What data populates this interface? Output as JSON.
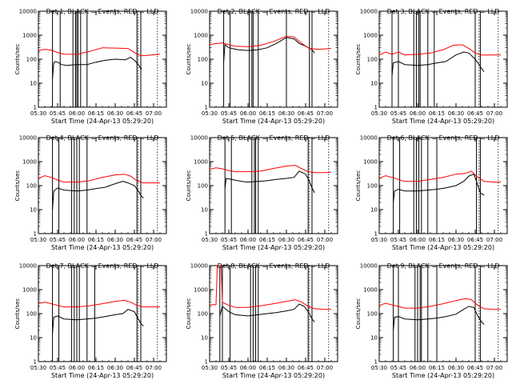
{
  "colors": {
    "events": "#000000",
    "lld": "#ff0000",
    "axes": "#000000",
    "background": "#ffffff"
  },
  "xlabel": "Start Time (24-Apr-13 05:29:20)",
  "ylabel": "Counts/sec",
  "xticks": [
    "05:30",
    "05:45",
    "06:00",
    "06:15",
    "06:30",
    "06:45",
    "07:00"
  ],
  "yticks": [
    "1",
    "10",
    "100",
    "1000",
    "10000"
  ],
  "chart_data": [
    {
      "type": "line",
      "title": "Det 1, BLACK = Events, RED = LLD",
      "xlabel": "Start Time (24-Apr-13 05:29:20)",
      "ylabel": "Counts/sec",
      "ylim": [
        1,
        10000
      ],
      "yscale": "log",
      "xlim": [
        "05:30",
        "07:10"
      ],
      "vertical_lines": [
        "05:41",
        "05:47",
        "05:57",
        "05:59",
        "06:00",
        "06:01",
        "06:03",
        "06:08",
        "06:47",
        "06:50"
      ],
      "series": [
        {
          "name": "Events",
          "color": "#000000",
          "x": [
            "05:41",
            "05:42",
            "05:43",
            "05:45",
            "05:48",
            "05:52",
            "06:00",
            "06:08",
            "06:15",
            "06:22",
            "06:30",
            "06:38",
            "06:42",
            "06:45",
            "06:47",
            "06:49",
            "06:50",
            "06:51"
          ],
          "y": [
            15,
            70,
            80,
            75,
            60,
            55,
            60,
            60,
            75,
            90,
            100,
            95,
            120,
            90,
            70,
            50,
            40,
            40
          ]
        },
        {
          "name": "LLD",
          "color": "#ff0000",
          "x": [
            "05:30",
            "05:35",
            "05:40",
            "05:45",
            "05:50",
            "06:00",
            "06:10",
            "06:20",
            "06:30",
            "06:40",
            "06:45",
            "06:48",
            "06:52",
            "06:58",
            "07:05"
          ],
          "y": [
            230,
            260,
            240,
            190,
            160,
            160,
            210,
            300,
            290,
            280,
            190,
            150,
            140,
            150,
            160
          ]
        }
      ]
    },
    {
      "type": "line",
      "title": "Det 2, BLACK = Events, RED = LLD",
      "xlabel": "Start Time (24-Apr-13 05:29:20)",
      "ylabel": "Counts/sec",
      "ylim": [
        1,
        10000
      ],
      "yscale": "log",
      "xlim": [
        "05:30",
        "07:10"
      ],
      "vertical_lines": [
        "05:41",
        "05:46",
        "06:01",
        "06:03",
        "06:04",
        "06:08",
        "06:30",
        "06:48",
        "06:50"
      ],
      "series": [
        {
          "name": "Events",
          "color": "#000000",
          "x": [
            "05:41",
            "05:42",
            "05:45",
            "05:52",
            "06:00",
            "06:08",
            "06:15",
            "06:22",
            "06:30",
            "06:36",
            "06:40",
            "06:45",
            "06:50",
            "06:52"
          ],
          "y": [
            80,
            400,
            300,
            250,
            230,
            250,
            300,
            450,
            800,
            700,
            450,
            350,
            250,
            180
          ]
        },
        {
          "name": "LLD",
          "color": "#ff0000",
          "x": [
            "05:30",
            "05:35",
            "05:40",
            "05:45",
            "05:50",
            "06:00",
            "06:10",
            "06:20",
            "06:30",
            "06:36",
            "06:42",
            "06:48",
            "06:55",
            "07:05"
          ],
          "y": [
            400,
            450,
            480,
            400,
            350,
            330,
            380,
            550,
            900,
            850,
            450,
            280,
            260,
            280
          ]
        }
      ]
    },
    {
      "type": "line",
      "title": "Det 3, BLACK = Events, RED = LLD",
      "xlabel": "Start Time (24-Apr-13 05:29:20)",
      "ylabel": "Counts/sec",
      "ylim": [
        1,
        10000
      ],
      "yscale": "log",
      "xlim": [
        "05:30",
        "07:10"
      ],
      "vertical_lines": [
        "05:40",
        "05:45",
        "05:57",
        "05:59",
        "06:01",
        "06:02",
        "06:08",
        "06:13",
        "06:45",
        "06:49"
      ],
      "series": [
        {
          "name": "Events",
          "color": "#000000",
          "x": [
            "05:40",
            "05:41",
            "05:45",
            "05:50",
            "06:00",
            "06:08",
            "06:15",
            "06:22",
            "06:30",
            "06:36",
            "06:40",
            "06:45",
            "06:48",
            "06:50",
            "06:52"
          ],
          "y": [
            20,
            70,
            80,
            60,
            55,
            60,
            70,
            80,
            150,
            200,
            180,
            100,
            60,
            40,
            30
          ]
        },
        {
          "name": "LLD",
          "color": "#ff0000",
          "x": [
            "05:30",
            "05:35",
            "05:40",
            "05:45",
            "05:50",
            "06:00",
            "06:10",
            "06:20",
            "06:28",
            "06:35",
            "06:40",
            "06:45",
            "06:50",
            "07:00",
            "07:05"
          ],
          "y": [
            150,
            200,
            160,
            200,
            150,
            160,
            180,
            250,
            380,
            400,
            280,
            180,
            150,
            150,
            150
          ]
        }
      ]
    },
    {
      "type": "line",
      "title": "Det 4, BLACK = Events, RED = LLD",
      "xlabel": "Start Time (24-Apr-13 05:29:20)",
      "ylabel": "Counts/sec",
      "ylim": [
        1,
        10000
      ],
      "yscale": "log",
      "xlim": [
        "05:30",
        "07:10"
      ],
      "vertical_lines": [
        "05:41",
        "05:46",
        "05:56",
        "05:58",
        "06:00",
        "06:02",
        "06:08",
        "06:47",
        "06:50"
      ],
      "series": [
        {
          "name": "Events",
          "color": "#000000",
          "x": [
            "05:41",
            "05:42",
            "05:45",
            "05:50",
            "06:00",
            "06:08",
            "06:15",
            "06:22",
            "06:30",
            "06:36",
            "06:40",
            "06:45",
            "06:48",
            "06:50",
            "06:52"
          ],
          "y": [
            10,
            60,
            80,
            65,
            60,
            65,
            75,
            85,
            120,
            150,
            130,
            100,
            60,
            40,
            30
          ]
        },
        {
          "name": "LLD",
          "color": "#ff0000",
          "x": [
            "05:30",
            "05:35",
            "05:40",
            "05:45",
            "05:50",
            "06:00",
            "06:10",
            "06:20",
            "06:30",
            "06:37",
            "06:42",
            "06:47",
            "06:52",
            "07:00",
            "07:05"
          ],
          "y": [
            200,
            260,
            220,
            170,
            140,
            140,
            160,
            220,
            280,
            300,
            250,
            160,
            130,
            130,
            130
          ]
        }
      ]
    },
    {
      "type": "line",
      "title": "Det 5, BLACK = Events, RED = LLD",
      "xlabel": "Start Time (24-Apr-13 05:29:20)",
      "ylabel": "Counts/sec",
      "ylim": [
        1,
        10000
      ],
      "yscale": "log",
      "xlim": [
        "05:30",
        "07:10"
      ],
      "vertical_lines": [
        "05:42",
        "05:47",
        "06:03",
        "06:05",
        "06:06",
        "06:08",
        "06:47",
        "06:50"
      ],
      "series": [
        {
          "name": "Events",
          "color": "#000000",
          "x": [
            "05:42",
            "05:43",
            "05:47",
            "05:55",
            "06:00",
            "06:08",
            "06:15",
            "06:22",
            "06:30",
            "06:36",
            "06:40",
            "06:45",
            "06:48",
            "06:50",
            "06:52"
          ],
          "y": [
            80,
            200,
            180,
            150,
            140,
            150,
            160,
            180,
            200,
            220,
            400,
            300,
            150,
            80,
            50
          ]
        },
        {
          "name": "LLD",
          "color": "#ff0000",
          "x": [
            "05:30",
            "05:35",
            "05:40",
            "05:45",
            "05:50",
            "06:00",
            "06:10",
            "06:20",
            "06:30",
            "06:37",
            "06:42",
            "06:47",
            "06:52",
            "07:00",
            "07:05"
          ],
          "y": [
            480,
            550,
            500,
            420,
            380,
            380,
            400,
            520,
            650,
            700,
            500,
            380,
            350,
            350,
            360
          ]
        }
      ]
    },
    {
      "type": "line",
      "title": "Det 6, BLACK = Events, RED = LLD",
      "xlabel": "Start Time (24-Apr-13 05:29:20)",
      "ylabel": "Counts/sec",
      "ylim": [
        1,
        10000
      ],
      "yscale": "log",
      "xlim": [
        "05:30",
        "07:10"
      ],
      "vertical_lines": [
        "05:41",
        "05:46",
        "05:57",
        "05:59",
        "06:01",
        "06:03",
        "06:08",
        "06:15",
        "06:46",
        "06:49"
      ],
      "series": [
        {
          "name": "Events",
          "color": "#000000",
          "x": [
            "05:41",
            "05:42",
            "05:45",
            "05:50",
            "06:00",
            "06:08",
            "06:15",
            "06:22",
            "06:30",
            "06:36",
            "06:40",
            "06:44",
            "06:46",
            "06:49",
            "06:52"
          ],
          "y": [
            20,
            60,
            70,
            60,
            60,
            65,
            70,
            80,
            100,
            150,
            250,
            300,
            150,
            50,
            40
          ]
        },
        {
          "name": "LLD",
          "color": "#ff0000",
          "x": [
            "05:30",
            "05:35",
            "05:40",
            "05:45",
            "05:50",
            "06:00",
            "06:10",
            "06:20",
            "06:30",
            "06:37",
            "06:42",
            "06:46",
            "06:52",
            "07:00",
            "07:05"
          ],
          "y": [
            200,
            260,
            220,
            180,
            150,
            150,
            180,
            220,
            300,
            320,
            400,
            250,
            150,
            140,
            140
          ]
        }
      ]
    },
    {
      "type": "line",
      "title": "Det 7, BLACK = Events, RED = LLD",
      "xlabel": "Start Time (24-Apr-13 05:29:20)",
      "ylabel": "Counts/sec",
      "ylim": [
        1,
        10000
      ],
      "yscale": "log",
      "xlim": [
        "05:30",
        "07:10"
      ],
      "vertical_lines": [
        "05:41",
        "05:46",
        "05:56",
        "05:58",
        "06:00",
        "06:02",
        "06:08",
        "06:14",
        "06:47",
        "06:50"
      ],
      "series": [
        {
          "name": "Events",
          "color": "#000000",
          "x": [
            "05:41",
            "05:42",
            "05:45",
            "05:50",
            "06:00",
            "06:08",
            "06:15",
            "06:22",
            "06:30",
            "06:36",
            "06:40",
            "06:45",
            "06:48",
            "06:50",
            "06:52"
          ],
          "y": [
            15,
            70,
            80,
            60,
            55,
            60,
            65,
            75,
            90,
            100,
            150,
            120,
            60,
            40,
            30
          ]
        },
        {
          "name": "LLD",
          "color": "#ff0000",
          "x": [
            "05:30",
            "05:35",
            "05:40",
            "05:45",
            "05:50",
            "06:00",
            "06:10",
            "06:20",
            "06:30",
            "06:37",
            "06:42",
            "06:47",
            "06:52",
            "07:00",
            "07:05"
          ],
          "y": [
            260,
            300,
            260,
            220,
            190,
            190,
            210,
            260,
            320,
            360,
            300,
            220,
            190,
            190,
            190
          ]
        }
      ]
    },
    {
      "type": "line",
      "title": "Det 8, BLACK = Events, RED = LLD",
      "xlabel": "Start Time (24-Apr-13 05:29:20)",
      "ylabel": "Counts/sec",
      "ylim": [
        1,
        10000
      ],
      "yscale": "log",
      "xlim": [
        "05:30",
        "07:10"
      ],
      "vertical_lines": [
        "05:38",
        "05:40",
        "05:46",
        "06:02",
        "06:04",
        "06:06",
        "06:08",
        "06:47",
        "06:50"
      ],
      "series": [
        {
          "name": "Events",
          "color": "#000000",
          "x": [
            "05:38",
            "05:40",
            "05:45",
            "05:50",
            "06:00",
            "06:08",
            "06:15",
            "06:22",
            "06:30",
            "06:36",
            "06:40",
            "06:44",
            "06:48",
            "06:50",
            "06:52"
          ],
          "y": [
            80,
            200,
            120,
            90,
            80,
            90,
            100,
            110,
            130,
            150,
            250,
            200,
            100,
            60,
            45
          ]
        },
        {
          "name": "LLD",
          "color": "#ff0000",
          "x": [
            "05:30",
            "05:33",
            "05:35",
            "05:36",
            "05:39",
            "05:40",
            "05:45",
            "05:50",
            "06:00",
            "06:10",
            "06:20",
            "06:30",
            "06:37",
            "06:42",
            "06:47",
            "06:52",
            "07:00",
            "07:05"
          ],
          "y": [
            230,
            240,
            230,
            10000,
            10000,
            300,
            220,
            180,
            180,
            210,
            260,
            320,
            380,
            300,
            200,
            160,
            150,
            150
          ]
        }
      ]
    },
    {
      "type": "line",
      "title": "Det 9, BLACK = Events, RED = LLD",
      "xlabel": "Start Time (24-Apr-13 05:29:20)",
      "ylabel": "Counts/sec",
      "ylim": [
        1,
        10000
      ],
      "yscale": "log",
      "xlim": [
        "05:30",
        "07:10"
      ],
      "vertical_lines": [
        "05:41",
        "05:45",
        "05:58",
        "06:00",
        "06:02",
        "06:03",
        "06:08",
        "06:15",
        "06:45",
        "06:49"
      ],
      "series": [
        {
          "name": "Events",
          "color": "#000000",
          "x": [
            "05:41",
            "05:42",
            "05:45",
            "05:50",
            "06:00",
            "06:08",
            "06:15",
            "06:22",
            "06:30",
            "06:36",
            "06:40",
            "06:44",
            "06:47",
            "06:50",
            "06:52"
          ],
          "y": [
            20,
            70,
            75,
            60,
            55,
            60,
            65,
            75,
            95,
            150,
            200,
            180,
            80,
            45,
            35
          ]
        },
        {
          "name": "LLD",
          "color": "#ff0000",
          "x": [
            "05:30",
            "05:35",
            "05:40",
            "05:45",
            "05:50",
            "06:00",
            "06:10",
            "06:20",
            "06:30",
            "06:37",
            "06:42",
            "06:47",
            "06:52",
            "07:00",
            "07:05"
          ],
          "y": [
            220,
            270,
            230,
            200,
            170,
            170,
            200,
            260,
            350,
            420,
            380,
            220,
            160,
            150,
            150
          ]
        }
      ]
    }
  ]
}
